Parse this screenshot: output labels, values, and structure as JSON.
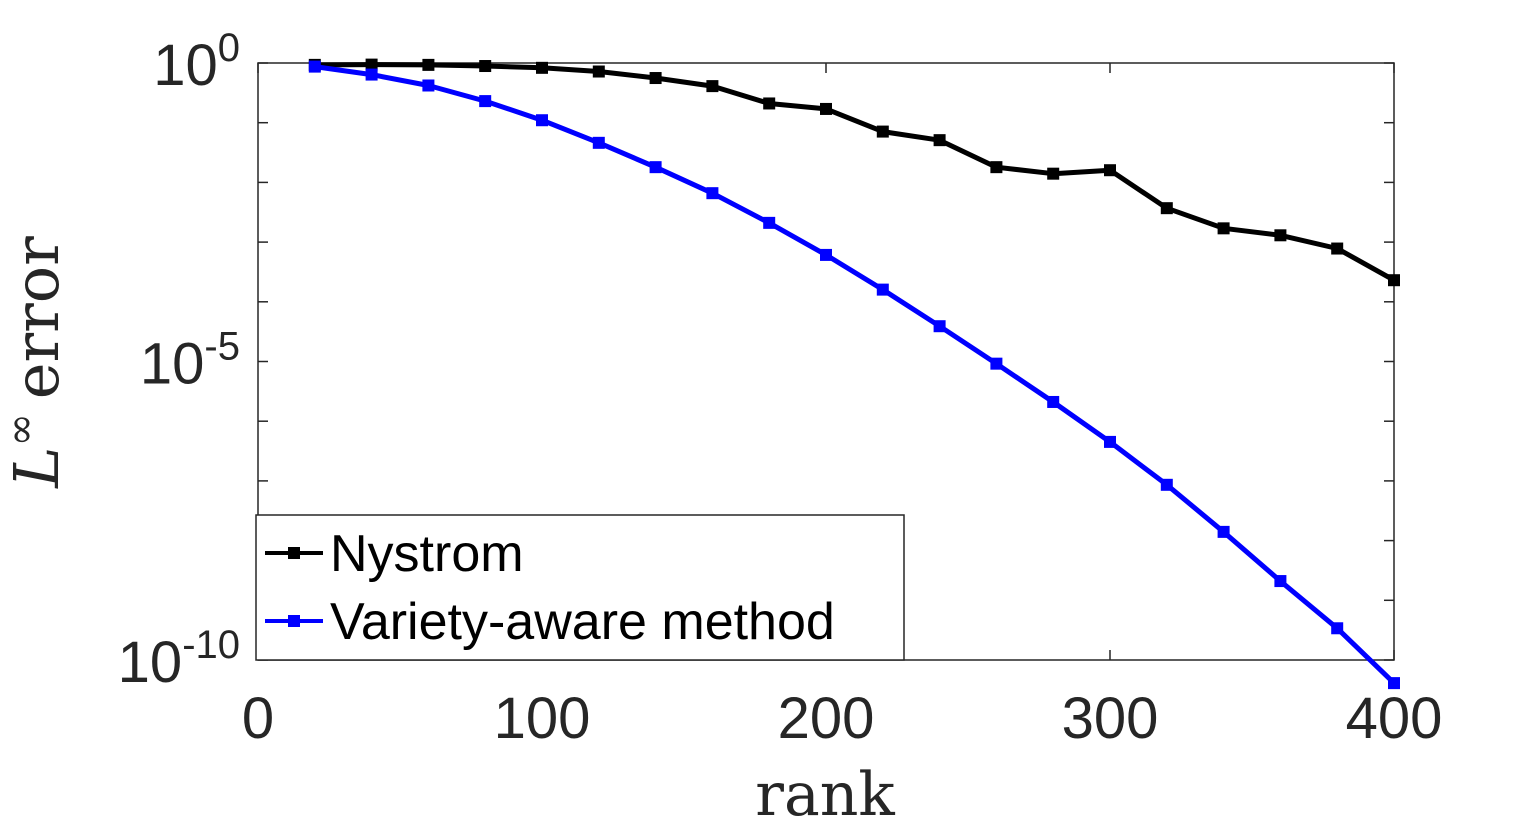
{
  "chart_data": {
    "type": "line",
    "xlabel": "rank",
    "ylabel": {
      "base": "L",
      "superscript": "∞",
      "text": "error"
    },
    "xlim": [
      0,
      400
    ],
    "ylim": [
      1e-10,
      1
    ],
    "yscale": "log",
    "grid": false,
    "legend_position": "bottom-left",
    "x_ticks": [
      {
        "value": 0,
        "label": "0"
      },
      {
        "value": 100,
        "label": "100"
      },
      {
        "value": 200,
        "label": "200"
      },
      {
        "value": 300,
        "label": "300"
      },
      {
        "value": 400,
        "label": "400"
      }
    ],
    "y_ticks": [
      {
        "value": 1,
        "base": "10",
        "exp": "0"
      },
      {
        "value": 1e-05,
        "base": "10",
        "exp": "-5"
      },
      {
        "value": 1e-10,
        "base": "10",
        "exp": "-10"
      }
    ],
    "x": [
      20,
      40,
      60,
      80,
      100,
      120,
      140,
      160,
      180,
      200,
      220,
      240,
      260,
      280,
      300,
      320,
      340,
      360,
      380,
      400
    ],
    "series": [
      {
        "name": "Nystrom",
        "color": "#000000",
        "values": [
          0.93,
          0.94,
          0.93,
          0.89,
          0.83,
          0.72,
          0.56,
          0.41,
          0.21,
          0.17,
          0.071,
          0.051,
          0.018,
          0.014,
          0.016,
          0.0037,
          0.0017,
          0.0013,
          0.00078,
          0.00023
        ]
      },
      {
        "name": "Variety-aware method",
        "color": "#0000ff",
        "values": [
          0.87,
          0.64,
          0.42,
          0.23,
          0.11,
          0.046,
          0.018,
          0.0066,
          0.0021,
          0.00061,
          0.00016,
          3.9e-05,
          9.2e-06,
          2.1e-06,
          4.5e-07,
          8.6e-08,
          1.4e-08,
          2.1e-09,
          3.4e-10,
          4.1e-11
        ]
      }
    ]
  }
}
